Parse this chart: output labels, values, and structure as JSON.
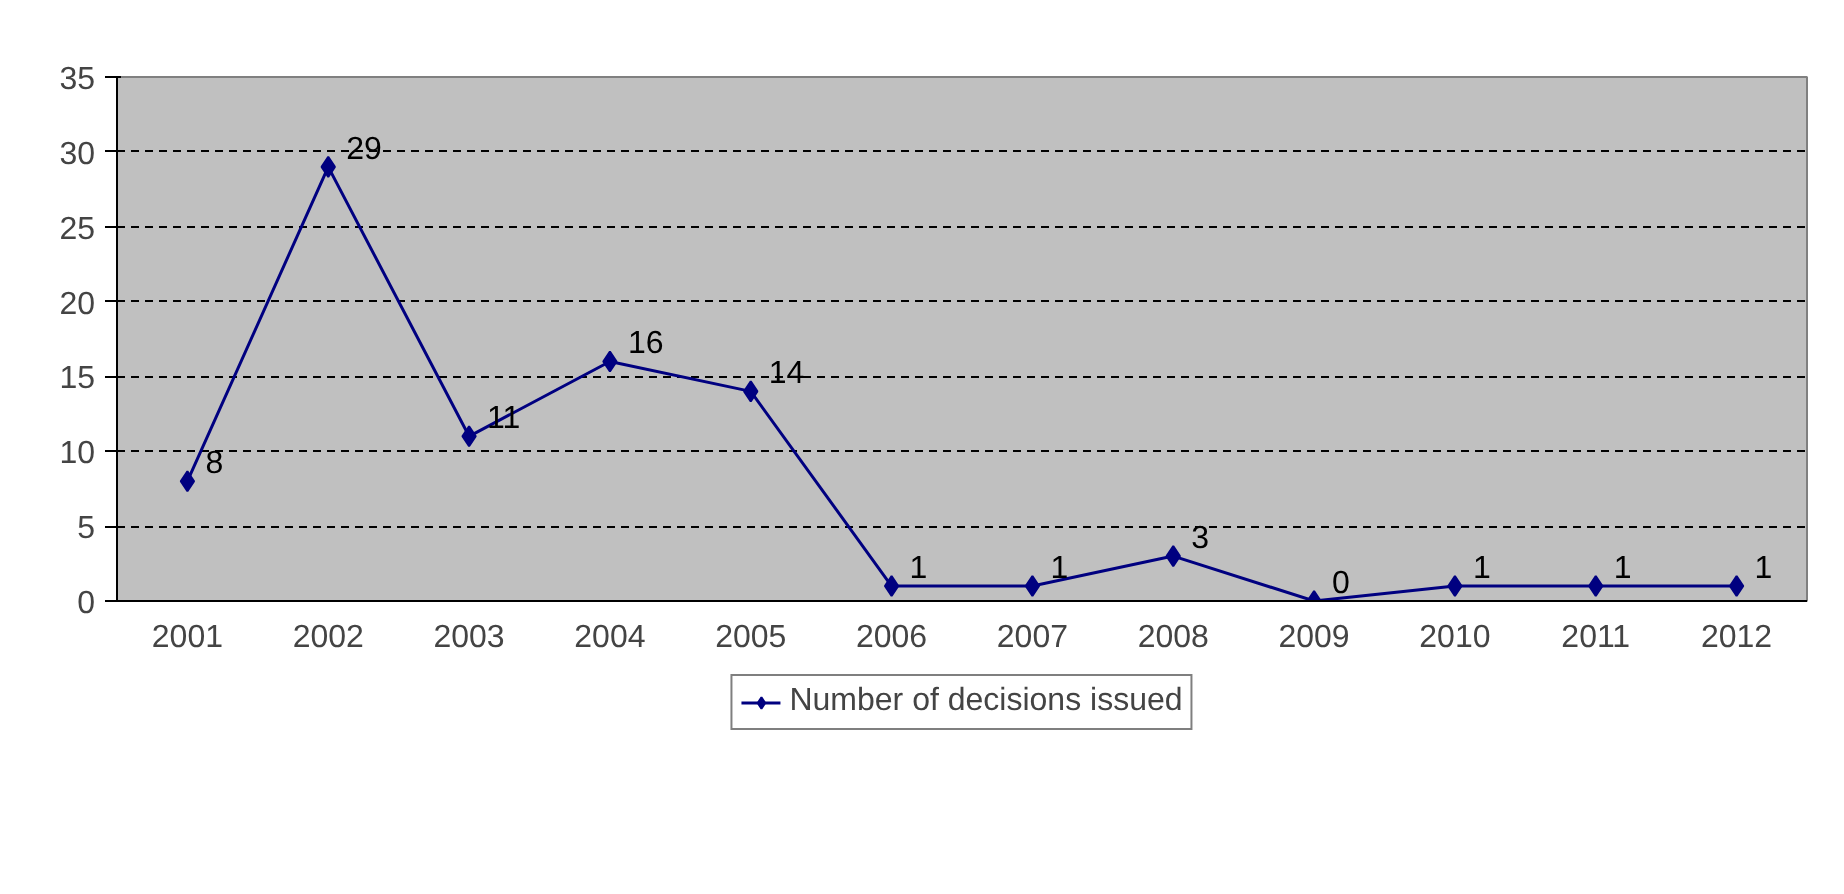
{
  "chart_data": {
    "type": "line",
    "categories": [
      "2001",
      "2002",
      "2003",
      "2004",
      "2005",
      "2006",
      "2007",
      "2008",
      "2009",
      "2010",
      "2011",
      "2012"
    ],
    "series": [
      {
        "name": "Number of decisions issued",
        "color": "#000080",
        "values": [
          8,
          29,
          11,
          16,
          14,
          1,
          1,
          3,
          0,
          1,
          1,
          1
        ]
      }
    ],
    "ylim": [
      0,
      35
    ],
    "yticks": [
      0,
      5,
      10,
      15,
      20,
      25,
      30,
      35
    ],
    "grid": "y",
    "legend": "bottom",
    "marker": "diamond",
    "line_style": "solid",
    "data_labels": true
  }
}
